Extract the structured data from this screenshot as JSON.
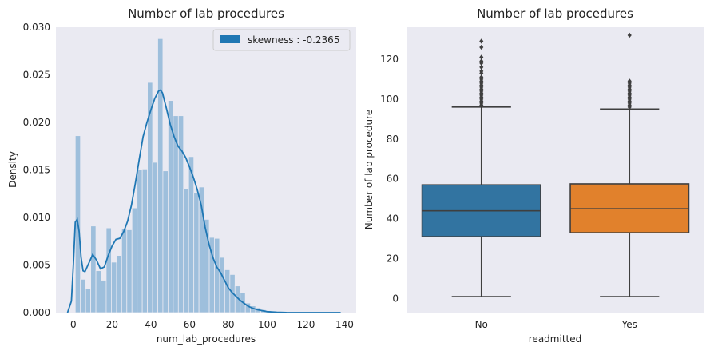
{
  "chart_data": [
    {
      "type": "histogram",
      "title": "Number of lab procedures",
      "xlabel": "num_lab_procedures",
      "ylabel": "Density",
      "xlim": [
        -9,
        146
      ],
      "ylim": [
        0,
        0.03
      ],
      "xticks": [
        0,
        20,
        40,
        60,
        80,
        100,
        120,
        140
      ],
      "yticks": [
        0.0,
        0.005,
        0.01,
        0.015,
        0.02,
        0.025,
        0.03
      ],
      "ytick_labels": [
        "0.000",
        "0.005",
        "0.010",
        "0.015",
        "0.020",
        "0.025",
        "0.030"
      ],
      "legend": {
        "label": "skewness : -0.2365",
        "position": "upper right"
      },
      "grid": false,
      "colors": {
        "bar": "#9ebfdc",
        "kde": "#1f77b4",
        "background": "#eaeaf2"
      },
      "bins": [
        {
          "x0": 1.0,
          "x1": 3.66,
          "y": 0.0186
        },
        {
          "x0": 3.66,
          "x1": 6.32,
          "y": 0.0035
        },
        {
          "x0": 6.32,
          "x1": 8.98,
          "y": 0.0025
        },
        {
          "x0": 8.98,
          "x1": 11.64,
          "y": 0.0091
        },
        {
          "x0": 11.64,
          "x1": 14.3,
          "y": 0.0044
        },
        {
          "x0": 14.3,
          "x1": 16.96,
          "y": 0.0034
        },
        {
          "x0": 16.96,
          "x1": 19.62,
          "y": 0.0089
        },
        {
          "x0": 19.62,
          "x1": 22.28,
          "y": 0.0053
        },
        {
          "x0": 22.28,
          "x1": 24.94,
          "y": 0.006
        },
        {
          "x0": 24.94,
          "x1": 27.6,
          "y": 0.0088
        },
        {
          "x0": 27.6,
          "x1": 30.26,
          "y": 0.0087
        },
        {
          "x0": 30.26,
          "x1": 32.92,
          "y": 0.011
        },
        {
          "x0": 32.92,
          "x1": 35.58,
          "y": 0.015
        },
        {
          "x0": 35.58,
          "x1": 38.24,
          "y": 0.0151
        },
        {
          "x0": 38.24,
          "x1": 40.9,
          "y": 0.0242
        },
        {
          "x0": 40.9,
          "x1": 43.56,
          "y": 0.0158
        },
        {
          "x0": 43.56,
          "x1": 46.22,
          "y": 0.0288
        },
        {
          "x0": 46.22,
          "x1": 48.88,
          "y": 0.0149
        },
        {
          "x0": 48.88,
          "x1": 51.54,
          "y": 0.0223
        },
        {
          "x0": 51.54,
          "x1": 54.2,
          "y": 0.0207
        },
        {
          "x0": 54.2,
          "x1": 56.86,
          "y": 0.0207
        },
        {
          "x0": 56.86,
          "x1": 59.52,
          "y": 0.013
        },
        {
          "x0": 59.52,
          "x1": 62.18,
          "y": 0.0164
        },
        {
          "x0": 62.18,
          "x1": 64.84,
          "y": 0.0126
        },
        {
          "x0": 64.84,
          "x1": 67.5,
          "y": 0.0132
        },
        {
          "x0": 67.5,
          "x1": 70.16,
          "y": 0.0098
        },
        {
          "x0": 70.16,
          "x1": 72.82,
          "y": 0.0079
        },
        {
          "x0": 72.82,
          "x1": 75.48,
          "y": 0.0078
        },
        {
          "x0": 75.48,
          "x1": 78.14,
          "y": 0.0058
        },
        {
          "x0": 78.14,
          "x1": 80.8,
          "y": 0.0045
        },
        {
          "x0": 80.8,
          "x1": 83.46,
          "y": 0.004
        },
        {
          "x0": 83.46,
          "x1": 86.12,
          "y": 0.0028
        },
        {
          "x0": 86.12,
          "x1": 88.78,
          "y": 0.0021
        },
        {
          "x0": 88.78,
          "x1": 91.44,
          "y": 0.001
        },
        {
          "x0": 91.44,
          "x1": 94.1,
          "y": 0.0007
        },
        {
          "x0": 94.1,
          "x1": 96.76,
          "y": 0.0005
        },
        {
          "x0": 96.76,
          "x1": 99.42,
          "y": 0.0003
        },
        {
          "x0": 99.42,
          "x1": 102.08,
          "y": 0.0002
        },
        {
          "x0": 102.08,
          "x1": 104.74,
          "y": 0.0001
        },
        {
          "x0": 104.74,
          "x1": 107.4,
          "y": 0.0001
        }
      ],
      "kde": [
        [
          -3,
          0.0
        ],
        [
          -1,
          0.0012
        ],
        [
          0,
          0.005
        ],
        [
          1,
          0.0095
        ],
        [
          2,
          0.0098
        ],
        [
          3,
          0.0085
        ],
        [
          4,
          0.0058
        ],
        [
          5,
          0.0044
        ],
        [
          6,
          0.0043
        ],
        [
          8,
          0.0052
        ],
        [
          10,
          0.0061
        ],
        [
          12,
          0.0055
        ],
        [
          14,
          0.0046
        ],
        [
          16,
          0.0048
        ],
        [
          18,
          0.006
        ],
        [
          20,
          0.007
        ],
        [
          22,
          0.0077
        ],
        [
          24,
          0.0078
        ],
        [
          26,
          0.0085
        ],
        [
          28,
          0.0096
        ],
        [
          30,
          0.0113
        ],
        [
          32,
          0.0136
        ],
        [
          34,
          0.0161
        ],
        [
          36,
          0.0185
        ],
        [
          38,
          0.02
        ],
        [
          40,
          0.0213
        ],
        [
          42,
          0.0225
        ],
        [
          44,
          0.0233
        ],
        [
          45,
          0.0234
        ],
        [
          46,
          0.0231
        ],
        [
          48,
          0.0215
        ],
        [
          50,
          0.0198
        ],
        [
          52,
          0.0185
        ],
        [
          54,
          0.0175
        ],
        [
          56,
          0.017
        ],
        [
          58,
          0.0163
        ],
        [
          60,
          0.0153
        ],
        [
          62,
          0.0142
        ],
        [
          64,
          0.0129
        ],
        [
          66,
          0.0113
        ],
        [
          68,
          0.009
        ],
        [
          70,
          0.0072
        ],
        [
          72,
          0.0058
        ],
        [
          74,
          0.0048
        ],
        [
          76,
          0.0042
        ],
        [
          78,
          0.0034
        ],
        [
          80,
          0.0026
        ],
        [
          82,
          0.0021
        ],
        [
          84,
          0.0017
        ],
        [
          86,
          0.0013
        ],
        [
          88,
          0.001
        ],
        [
          90,
          0.0007
        ],
        [
          92,
          0.0005
        ],
        [
          95,
          0.0003
        ],
        [
          100,
          0.0001
        ],
        [
          105,
          4e-05
        ],
        [
          110,
          1e-05
        ],
        [
          120,
          0.0
        ],
        [
          138,
          0.0
        ]
      ]
    },
    {
      "type": "box",
      "title": "Number of lab procedures",
      "xlabel": "readmitted",
      "ylabel": "Number of lab procedure",
      "ylim": [
        -7,
        136
      ],
      "yticks": [
        0,
        20,
        40,
        60,
        80,
        100,
        120
      ],
      "grid": false,
      "categories": [
        "No",
        "Yes"
      ],
      "boxes": [
        {
          "name": "No",
          "color": "#3274a1",
          "whisker_low": 1,
          "q1": 31,
          "median": 44,
          "q3": 57,
          "whisker_high": 96,
          "outliers": [
            97,
            98,
            99,
            100,
            101,
            102,
            103,
            104,
            105,
            106,
            107,
            108,
            109,
            110,
            111,
            113,
            114,
            116,
            118,
            119,
            121,
            126,
            129
          ]
        },
        {
          "name": "Yes",
          "color": "#e1812c",
          "whisker_low": 1,
          "q1": 33,
          "median": 45,
          "q3": 57.5,
          "whisker_high": 95,
          "outliers": [
            96,
            97,
            98,
            99,
            100,
            101,
            102,
            103,
            104,
            105,
            106,
            107,
            108,
            109,
            132
          ]
        }
      ]
    }
  ]
}
